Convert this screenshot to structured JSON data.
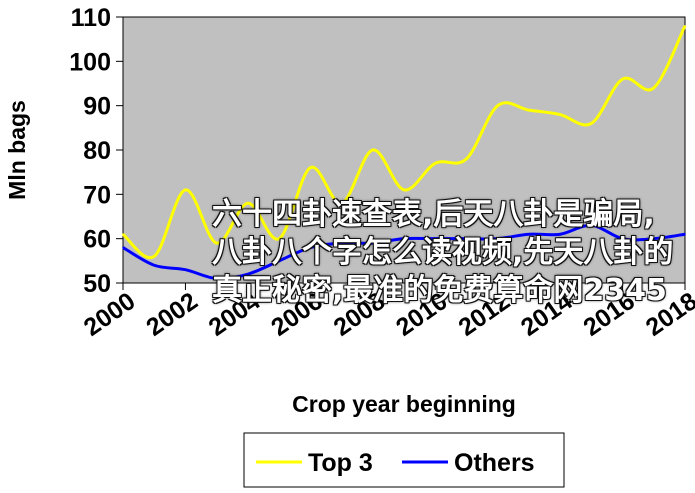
{
  "chart_data": {
    "type": "line",
    "title": "",
    "xlabel": "Crop year beginning",
    "ylabel": "Mln bags",
    "xlim": [
      2000,
      2018
    ],
    "ylim": [
      50,
      110
    ],
    "yticks": [
      50,
      60,
      70,
      80,
      90,
      100,
      110
    ],
    "xticks": [
      "2000",
      "2002",
      "2004",
      "2006",
      "2008",
      "2010",
      "2012",
      "2014",
      "2016",
      "2018"
    ],
    "grid": false,
    "legend_position": "bottom",
    "series": [
      {
        "name": "Top 3",
        "color": "#ffff00",
        "x": [
          2000,
          2001,
          2002,
          2003,
          2004,
          2005,
          2006,
          2007,
          2008,
          2009,
          2010,
          2011,
          2012,
          2013,
          2014,
          2015,
          2016,
          2017,
          2018
        ],
        "values": [
          61,
          56,
          71,
          59,
          68,
          60,
          76,
          68,
          80,
          71,
          77,
          78,
          90,
          89,
          88,
          86,
          96,
          94,
          108
        ]
      },
      {
        "name": "Others",
        "color": "#0000ff",
        "x": [
          2000,
          2001,
          2002,
          2003,
          2004,
          2005,
          2006,
          2007,
          2008,
          2009,
          2010,
          2011,
          2012,
          2013,
          2014,
          2015,
          2016,
          2017,
          2018
        ],
        "values": [
          58,
          54,
          53,
          51,
          52,
          55,
          58,
          59,
          59,
          60,
          60,
          60,
          60,
          61,
          61,
          63,
          60,
          60,
          61
        ]
      }
    ]
  },
  "overlay": {
    "text": "六十四卦速查表,后天八卦是骗局,八卦八个字怎么读视频,先天八卦的真正秘密,最准的免费算命网2345"
  }
}
